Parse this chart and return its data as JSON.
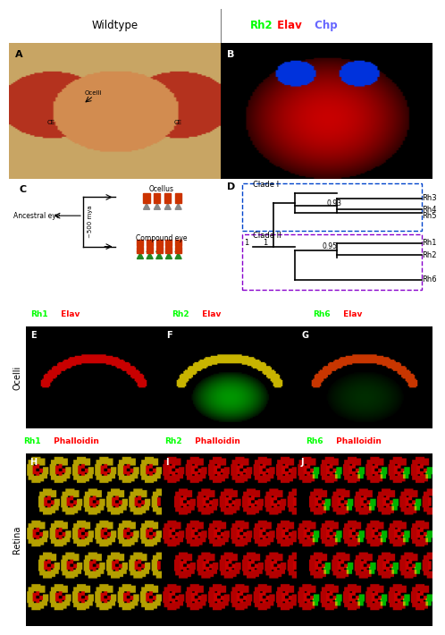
{
  "title_row": {
    "left": "Wildtype",
    "right_parts": [
      "Rh2",
      " Elav",
      " Chp"
    ],
    "right_colors": [
      "#00ff00",
      "#ff0000",
      "#6666ff"
    ]
  },
  "panel_labels": [
    "A",
    "B",
    "C",
    "D",
    "E",
    "F",
    "G",
    "H",
    "I",
    "J"
  ],
  "panel_C": {
    "ancestral_text": "Ancestral eye",
    "time_text": "~500 mya",
    "ocellus_label": "Ocellus",
    "compound_label": "Compound eye"
  },
  "panel_D": {
    "clade1_label": "Clade I",
    "clade2_label": "Clade II",
    "clade1_color": "#0000cc",
    "clade2_color": "#9900cc",
    "nodes": {
      "clade1": {
        "support1": "0.93",
        "taxa": [
          "Rh3",
          "Rh4",
          "Rh5"
        ],
        "root_support": "1"
      },
      "clade2": {
        "support1": "0.95",
        "taxa": [
          "Rh1",
          "Rh2",
          "Rh6"
        ],
        "root_support": "1"
      }
    }
  },
  "row_labels": {
    "ocelli": "Ocelli",
    "retina": "Retina"
  },
  "label_rows_EFG": [
    {
      "parts": [
        "Rh1",
        " Elav"
      ],
      "colors": [
        "#00ff00",
        "#ff0000"
      ]
    },
    {
      "parts": [
        "Rh2",
        " Elav"
      ],
      "colors": [
        "#00ff00",
        "#ff0000"
      ]
    },
    {
      "parts": [
        "Rh6",
        " Elav"
      ],
      "colors": [
        "#00ff00",
        "#ff0000"
      ]
    }
  ],
  "label_rows_HIJ": [
    {
      "parts": [
        "Rh1",
        " Phalloidin"
      ],
      "colors": [
        "#00ff00",
        "#ff0000"
      ]
    },
    {
      "parts": [
        "Rh2",
        " Phalloidin"
      ],
      "colors": [
        "#00ff00",
        "#ff0000"
      ]
    },
    {
      "parts": [
        "Rh6",
        " Phalloidin"
      ],
      "colors": [
        "#00ff00",
        "#ff0000"
      ]
    }
  ],
  "bg_color": "#000000",
  "white": "#ffffff",
  "black": "#000000",
  "border_color": "#000000"
}
